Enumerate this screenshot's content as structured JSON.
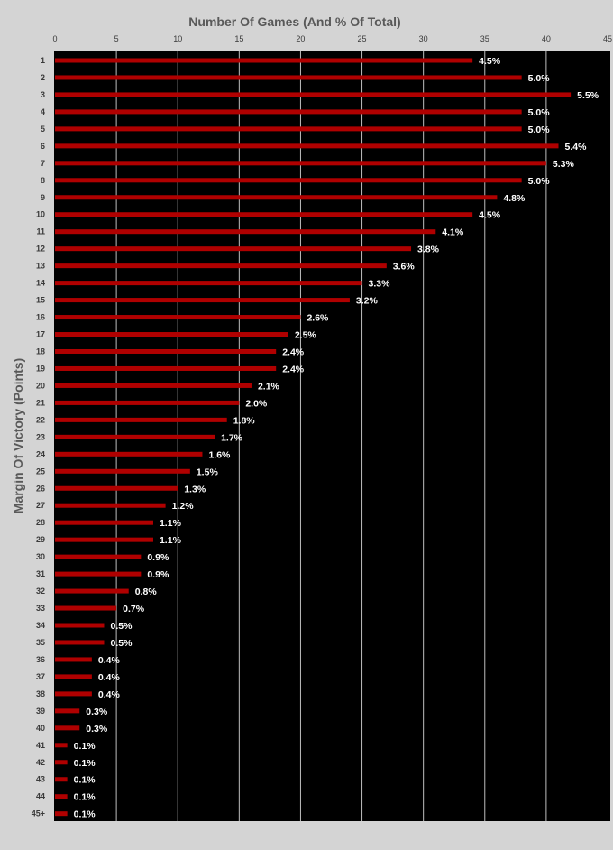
{
  "chart_data": {
    "type": "bar",
    "orientation": "horizontal",
    "title": "Number Of Games (And % Of Total)",
    "xlabel": "Number Of Games (And % Of Total)",
    "ylabel": "Margin Of Victory (Points)",
    "xlim": [
      0,
      45
    ],
    "x_ticks": [
      0,
      5,
      10,
      15,
      20,
      25,
      30,
      35,
      40,
      45
    ],
    "grid": "vertical",
    "categories": [
      "1",
      "2",
      "3",
      "4",
      "5",
      "6",
      "7",
      "8",
      "9",
      "10",
      "11",
      "12",
      "13",
      "14",
      "15",
      "16",
      "17",
      "18",
      "19",
      "20",
      "21",
      "22",
      "23",
      "24",
      "25",
      "26",
      "27",
      "28",
      "29",
      "30",
      "31",
      "32",
      "33",
      "34",
      "35",
      "36",
      "37",
      "38",
      "39",
      "40",
      "41",
      "42",
      "43",
      "44",
      "45+"
    ],
    "values": [
      34,
      38,
      42,
      38,
      38,
      41,
      40,
      38,
      36,
      34,
      31,
      29,
      27,
      25,
      24,
      20,
      19,
      18,
      18,
      16,
      15,
      14,
      13,
      12,
      11,
      10,
      9,
      8,
      8,
      7,
      7,
      6,
      5,
      4,
      4,
      3,
      3,
      3,
      2,
      2,
      1,
      1,
      1,
      1,
      1
    ],
    "labels": [
      "4.5%",
      "5.0%",
      "5.5%",
      "5.0%",
      "5.0%",
      "5.4%",
      "5.3%",
      "5.0%",
      "4.8%",
      "4.5%",
      "4.1%",
      "3.8%",
      "3.6%",
      "3.3%",
      "3.2%",
      "2.6%",
      "2.5%",
      "2.4%",
      "2.4%",
      "2.1%",
      "2.0%",
      "1.8%",
      "1.7%",
      "1.6%",
      "1.5%",
      "1.3%",
      "1.2%",
      "1.1%",
      "1.1%",
      "0.9%",
      "0.9%",
      "0.8%",
      "0.7%",
      "0.5%",
      "0.5%",
      "0.4%",
      "0.4%",
      "0.4%",
      "0.3%",
      "0.3%",
      "0.1%",
      "0.1%",
      "0.1%",
      "0.1%",
      "0.1%"
    ],
    "colors": {
      "bar": "#b00000",
      "plot_background": "#000000",
      "page_background": "#d4d4d4",
      "gridline": "#bfbfbf",
      "data_label": "#ffffff",
      "axis_text": "#595959",
      "tick_text": "#3a3a3a"
    }
  }
}
